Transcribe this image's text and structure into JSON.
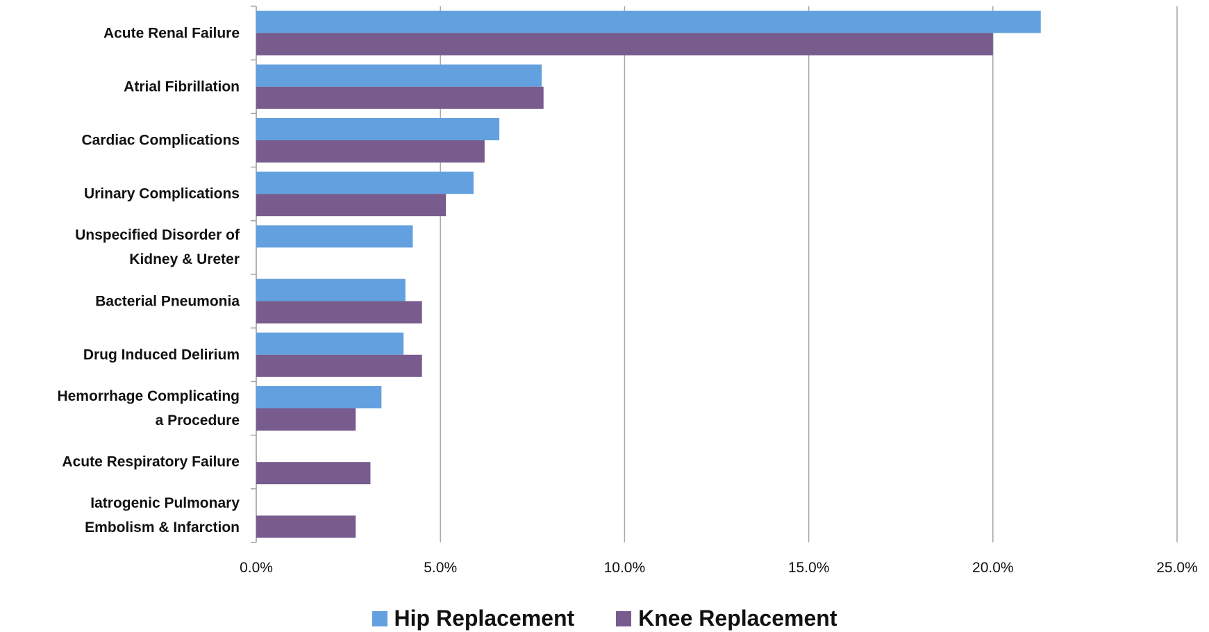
{
  "chart_data": {
    "type": "hbar",
    "categories": [
      "Acute Renal Failure",
      "Atrial Fibrillation",
      "Cardiac Complications",
      "Urinary Complications",
      "Unspecified Disorder of\nKidney & Ureter",
      "Bacterial Pneumonia",
      "Drug Induced Delirium",
      "Hemorrhage Complicating\na Procedure",
      "Acute Respiratory Failure",
      "Iatrogenic Pulmonary\nEmbolism & Infarction"
    ],
    "series": [
      {
        "name": "Hip Replacement",
        "color": "#63a0df",
        "values": [
          21.3,
          7.75,
          6.6,
          5.9,
          4.25,
          4.05,
          4.0,
          3.4,
          null,
          null
        ]
      },
      {
        "name": "Knee Replacement",
        "color": "#775c8d",
        "values": [
          20.0,
          7.8,
          6.2,
          5.15,
          null,
          4.5,
          4.5,
          2.7,
          3.1,
          2.7
        ]
      }
    ],
    "xlim": [
      0,
      25
    ],
    "xticks": [
      {
        "value": 0,
        "label": "0.0%"
      },
      {
        "value": 5,
        "label": "5.0%"
      },
      {
        "value": 10,
        "label": "10.0%"
      },
      {
        "value": 15,
        "label": "15.0%"
      },
      {
        "value": 20,
        "label": "20.0%"
      },
      {
        "value": 25,
        "label": "25.0%"
      }
    ],
    "grid": true,
    "legend": "bottom"
  }
}
